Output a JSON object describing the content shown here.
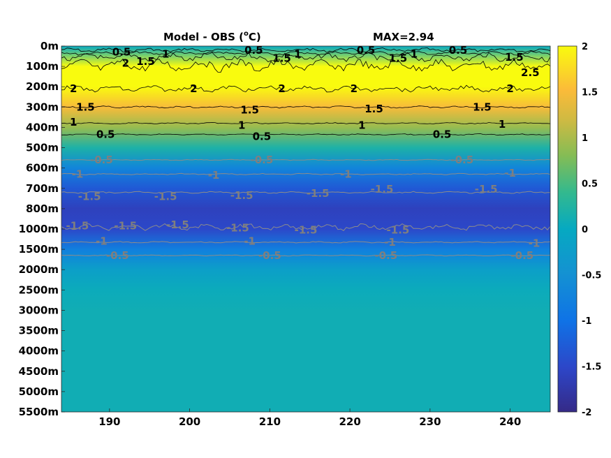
{
  "chart_data": {
    "type": "heatmap",
    "title": "Model - OBS (°C)",
    "title_main": "Model - OBS (",
    "title_sup": "o",
    "title_end": "C)",
    "max_label": "MAX=2.94",
    "x": {
      "ticks": [
        190,
        200,
        210,
        220,
        230,
        240
      ],
      "tick_labels": [
        "190",
        "200",
        "210",
        "220",
        "230",
        "240"
      ],
      "range": [
        184,
        245
      ]
    },
    "y": {
      "tick_labels": [
        "0m",
        "100m",
        "200m",
        "300m",
        "400m",
        "500m",
        "600m",
        "700m",
        "800m",
        "1000m",
        "1500m",
        "2000m",
        "2500m",
        "3000m",
        "3500m",
        "4000m",
        "4500m",
        "5000m",
        "5500m"
      ],
      "scale": "stretched, one row per listed depth level"
    },
    "colorbar": {
      "range": [
        -2,
        2
      ],
      "ticks": [
        2,
        1.5,
        1,
        0.5,
        0,
        -0.5,
        -1,
        -1.5,
        -2
      ],
      "tick_labels": [
        "2",
        "1.5",
        "1",
        "0.5",
        "0",
        "-0.5",
        "-1",
        "-1.5",
        "-2"
      ],
      "colormap": "parula"
    },
    "depth_profile": [
      {
        "depth": "0m",
        "value": 0.0
      },
      {
        "depth": "100m",
        "value": 2.2
      },
      {
        "depth": "200m",
        "value": 2.0
      },
      {
        "depth": "300m",
        "value": 1.5
      },
      {
        "depth": "400m",
        "value": 0.9
      },
      {
        "depth": "500m",
        "value": 0.2
      },
      {
        "depth": "600m",
        "value": -0.7
      },
      {
        "depth": "700m",
        "value": -1.3
      },
      {
        "depth": "800m",
        "value": -1.6
      },
      {
        "depth": "1000m",
        "value": -1.5
      },
      {
        "depth": "1500m",
        "value": -0.8
      },
      {
        "depth": "2000m",
        "value": -0.2
      },
      {
        "depth": "2500m",
        "value": 0.05
      },
      {
        "depth": "3000m",
        "value": 0.1
      },
      {
        "depth": "3500m",
        "value": 0.1
      },
      {
        "depth": "4000m",
        "value": 0.1
      },
      {
        "depth": "4500m",
        "value": 0.1
      },
      {
        "depth": "5000m",
        "value": 0.1
      },
      {
        "depth": "5500m",
        "value": 0.1
      }
    ],
    "contour_labels_positive": [
      {
        "text": "0.5",
        "x": 191.5,
        "depth_idx": 0.3
      },
      {
        "text": "2",
        "x": 192.0,
        "depth_idx": 0.85
      },
      {
        "text": "1.5",
        "x": 194.5,
        "depth_idx": 0.75
      },
      {
        "text": "1",
        "x": 197.0,
        "depth_idx": 0.4
      },
      {
        "text": "0.5",
        "x": 208.0,
        "depth_idx": 0.2
      },
      {
        "text": "1.5",
        "x": 211.5,
        "depth_idx": 0.6
      },
      {
        "text": "1",
        "x": 213.5,
        "depth_idx": 0.4
      },
      {
        "text": "0.5",
        "x": 222.0,
        "depth_idx": 0.2
      },
      {
        "text": "1.5",
        "x": 226.0,
        "depth_idx": 0.6
      },
      {
        "text": "1",
        "x": 228.0,
        "depth_idx": 0.4
      },
      {
        "text": "0.5",
        "x": 233.5,
        "depth_idx": 0.2
      },
      {
        "text": "1.5",
        "x": 240.5,
        "depth_idx": 0.55
      },
      {
        "text": "2.5",
        "x": 242.5,
        "depth_idx": 1.3
      },
      {
        "text": "2",
        "x": 185.5,
        "depth_idx": 2.1
      },
      {
        "text": "2",
        "x": 200.5,
        "depth_idx": 2.1
      },
      {
        "text": "2",
        "x": 211.5,
        "depth_idx": 2.1
      },
      {
        "text": "2",
        "x": 220.5,
        "depth_idx": 2.1
      },
      {
        "text": "2",
        "x": 240.0,
        "depth_idx": 2.1
      },
      {
        "text": "1.5",
        "x": 187.0,
        "depth_idx": 3.0
      },
      {
        "text": "1.5",
        "x": 207.5,
        "depth_idx": 3.15
      },
      {
        "text": "1.5",
        "x": 223.0,
        "depth_idx": 3.1
      },
      {
        "text": "1.5",
        "x": 236.5,
        "depth_idx": 3.0
      },
      {
        "text": "1",
        "x": 185.5,
        "depth_idx": 3.75
      },
      {
        "text": "1",
        "x": 206.5,
        "depth_idx": 3.9
      },
      {
        "text": "1",
        "x": 221.5,
        "depth_idx": 3.9
      },
      {
        "text": "1",
        "x": 239.0,
        "depth_idx": 3.85
      },
      {
        "text": "0.5",
        "x": 189.5,
        "depth_idx": 4.35
      },
      {
        "text": "0.5",
        "x": 209.0,
        "depth_idx": 4.45
      },
      {
        "text": "0.5",
        "x": 231.5,
        "depth_idx": 4.35
      }
    ],
    "contour_labels_negative": [
      {
        "text": "-0.5",
        "x": 189.0,
        "depth_idx": 5.6
      },
      {
        "text": "-0.5",
        "x": 209.0,
        "depth_idx": 5.6
      },
      {
        "text": "-0.5",
        "x": 234.0,
        "depth_idx": 5.6
      },
      {
        "text": "-1",
        "x": 186.0,
        "depth_idx": 6.3
      },
      {
        "text": "-1",
        "x": 203.0,
        "depth_idx": 6.35
      },
      {
        "text": "-1",
        "x": 219.5,
        "depth_idx": 6.3
      },
      {
        "text": "-1",
        "x": 240.0,
        "depth_idx": 6.25
      },
      {
        "text": "-1.5",
        "x": 187.5,
        "depth_idx": 7.4
      },
      {
        "text": "-1.5",
        "x": 197.0,
        "depth_idx": 7.4
      },
      {
        "text": "-1.5",
        "x": 206.5,
        "depth_idx": 7.35
      },
      {
        "text": "-1.5",
        "x": 216.0,
        "depth_idx": 7.25
      },
      {
        "text": "-1.5",
        "x": 224.0,
        "depth_idx": 7.05
      },
      {
        "text": "-1.5",
        "x": 237.0,
        "depth_idx": 7.05
      },
      {
        "text": "-1.5",
        "x": 186.0,
        "depth_idx": 8.85
      },
      {
        "text": "-1.5",
        "x": 192.0,
        "depth_idx": 8.85
      },
      {
        "text": "-1.5",
        "x": 198.5,
        "depth_idx": 8.8
      },
      {
        "text": "-1.5",
        "x": 206.0,
        "depth_idx": 8.95
      },
      {
        "text": "-1.5",
        "x": 214.5,
        "depth_idx": 9.05
      },
      {
        "text": "-1.5",
        "x": 226.0,
        "depth_idx": 9.05
      },
      {
        "text": "-1",
        "x": 189.0,
        "depth_idx": 9.6
      },
      {
        "text": "-1",
        "x": 207.5,
        "depth_idx": 9.6
      },
      {
        "text": "-1",
        "x": 225.0,
        "depth_idx": 9.65
      },
      {
        "text": "-1",
        "x": 243.0,
        "depth_idx": 9.7
      },
      {
        "text": "-0.5",
        "x": 191.0,
        "depth_idx": 10.3
      },
      {
        "text": "-0.5",
        "x": 210.0,
        "depth_idx": 10.3
      },
      {
        "text": "-0.5",
        "x": 224.5,
        "depth_idx": 10.3
      },
      {
        "text": "-0.5",
        "x": 241.5,
        "depth_idx": 10.3
      }
    ],
    "contour_lines": [
      {
        "level": 0.5,
        "depth_idx": 0.2,
        "color": "#000000",
        "noise": 0.12
      },
      {
        "level": 1,
        "depth_idx": 0.35,
        "color": "#000000",
        "noise": 0.1
      },
      {
        "level": 1.5,
        "depth_idx": 0.55,
        "color": "#000000",
        "noise": 0.25
      },
      {
        "level": 2,
        "depth_idx": 0.95,
        "color": "#000000",
        "noise": 0.35
      },
      {
        "level": 2,
        "depth_idx": 2.1,
        "color": "#000000",
        "noise": 0.18
      },
      {
        "level": 1.5,
        "depth_idx": 3.0,
        "color": "#000000",
        "noise": 0.06
      },
      {
        "level": 1,
        "depth_idx": 3.8,
        "color": "#000000",
        "noise": 0.04
      },
      {
        "level": 0.5,
        "depth_idx": 4.35,
        "color": "#000000",
        "noise": 0.04
      },
      {
        "level": -0.5,
        "depth_idx": 5.6,
        "color": "#8c8c8c",
        "noise": 0.03
      },
      {
        "level": -1,
        "depth_idx": 6.3,
        "color": "#8c8c8c",
        "noise": 0.04
      },
      {
        "level": -1.5,
        "depth_idx": 7.2,
        "color": "#8c8c8c",
        "noise": 0.05
      },
      {
        "level": -1.5,
        "depth_idx": 8.9,
        "color": "#8c8c8c",
        "noise": 0.18
      },
      {
        "level": -1,
        "depth_idx": 9.65,
        "color": "#8c8c8c",
        "noise": 0.04
      },
      {
        "level": -0.5,
        "depth_idx": 10.3,
        "color": "#8c8c8c",
        "noise": 0.03
      }
    ]
  }
}
